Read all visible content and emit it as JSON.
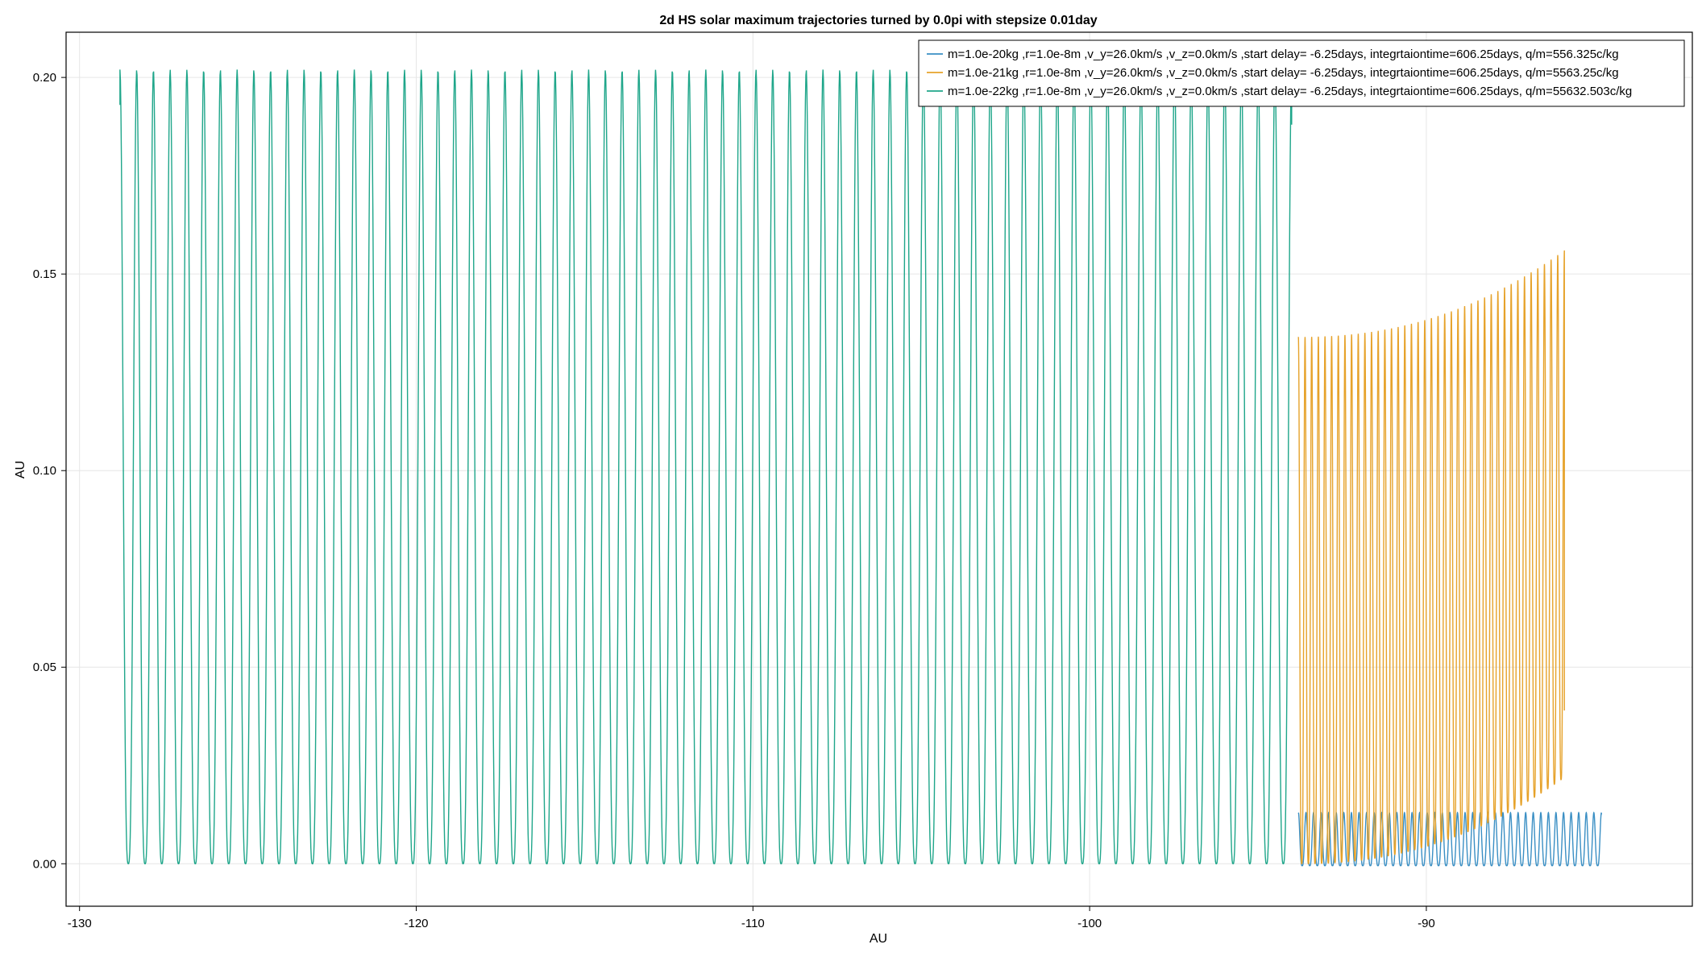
{
  "chart_data": {
    "type": "line",
    "title": "2d HS solar maximum trajectories turned by 0.0pi with stepsize 0.01day",
    "xlabel": "AU",
    "ylabel": "AU",
    "xlim": [
      -130.4,
      -82.1
    ],
    "ylim": [
      -0.0108,
      0.2115
    ],
    "xticks": [
      -130,
      -120,
      -110,
      -100,
      -90
    ],
    "yticks": [
      0.0,
      0.05,
      0.1,
      0.15,
      0.2
    ],
    "xtick_labels": [
      "-130",
      "-120",
      "-110",
      "-100",
      "-90"
    ],
    "ytick_labels": [
      "0.00",
      "0.05",
      "0.10",
      "0.15",
      "0.20"
    ],
    "grid": true,
    "legend_position": "top-right",
    "series": [
      {
        "name": "m=1.0e-20kg ,r=1.0e-8m ,v_y=26.0km/s ,v_z=0.0km/s ,start delay= -6.25days, integrtaiontime=606.25days, q/m=556.325c/kg",
        "color": "#3a8fc4",
        "trajectory": "oscillation",
        "x_start": -93.8,
        "x_end": -84.8,
        "cycles": 40,
        "y_min": -0.0005,
        "y_max": 0.013,
        "end_y": 0.0125
      },
      {
        "name": "m=1.0e-21kg ,r=1.0e-8m ,v_y=26.0km/s ,v_z=0.0km/s ,start delay= -6.25days, integrtaiontime=606.25days, q/m=5563.25c/kg",
        "color": "#e6a22a",
        "trajectory": "oscillation",
        "x_start": -93.8,
        "x_end": -85.9,
        "cycles": 40,
        "y_min_start": 0.0,
        "y_min_end": 0.022,
        "y_max_start": 0.134,
        "y_max_end": 0.156,
        "end_y": 0.039
      },
      {
        "name": "m=1.0e-22kg ,r=1.0e-8m ,v_y=26.0km/s ,v_z=0.0km/s ,start delay= -6.25days, integrtaiontime=606.25days, q/m=55632.503c/kg",
        "color": "#1fa68a",
        "trajectory": "oscillation",
        "x_start": -128.8,
        "x_end": -94.0,
        "cycles": 70,
        "y_min": 0.0,
        "y_max": 0.202,
        "start_y": 0.193,
        "end_y": 0.188
      }
    ]
  }
}
